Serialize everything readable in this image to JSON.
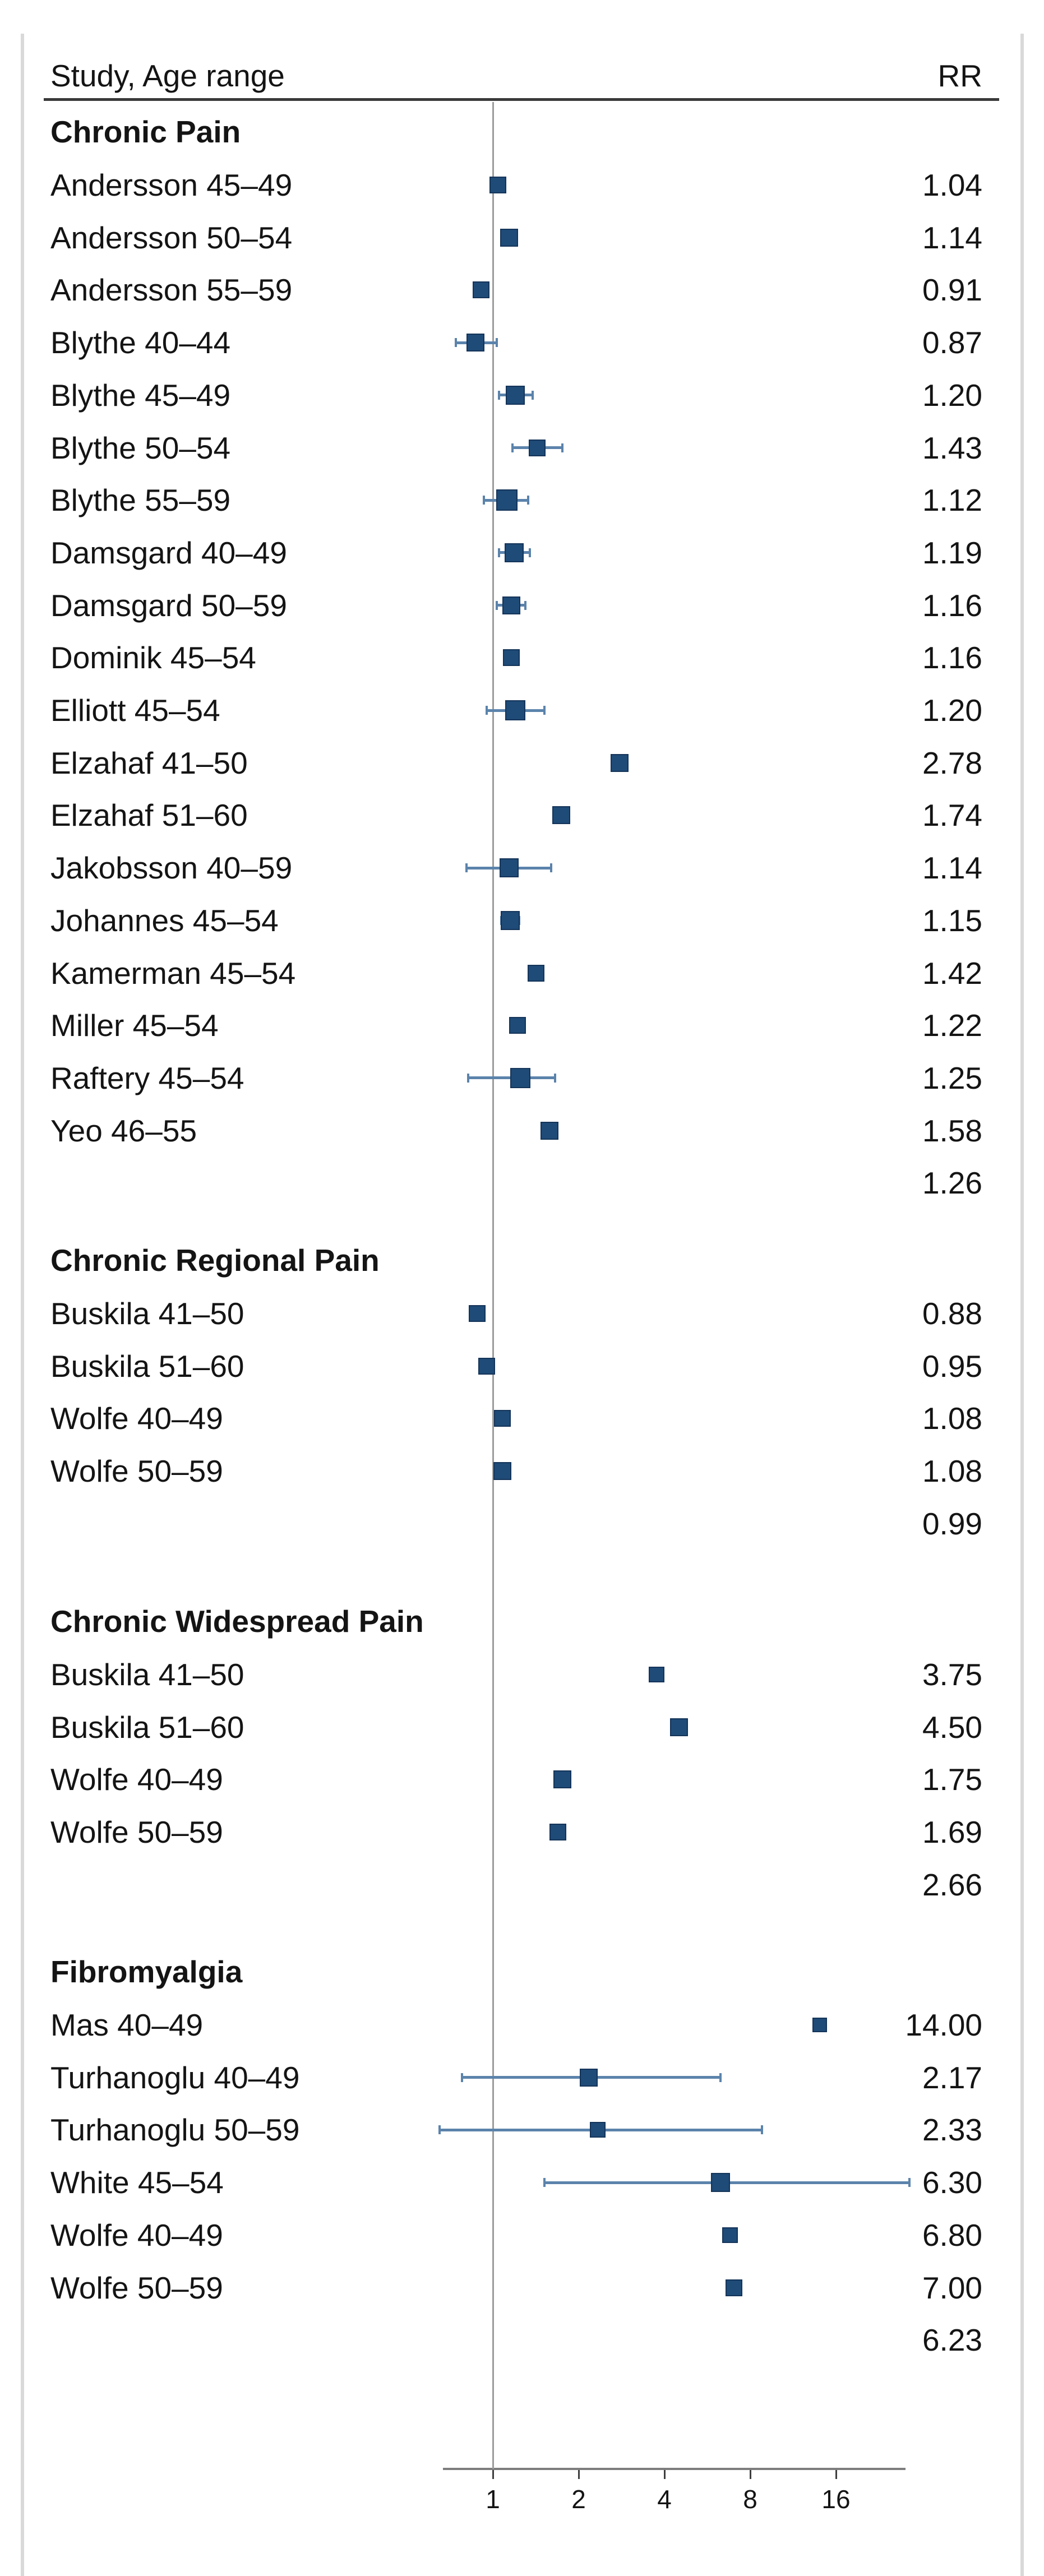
{
  "header": {
    "col_study": "Study, Age range",
    "col_rr": "RR"
  },
  "colors": {
    "marker": "#1f4b78",
    "marker_border": "#143459",
    "ci_line": "#5b83ab",
    "reference_line": "#9c9c9c",
    "axis_line": "#7d7d7d",
    "tick": "#3f3f3f",
    "header_rule": "#3a3a3a",
    "page_border": "#d9d9d9",
    "text": "#141414"
  },
  "chart_data": {
    "type": "scatter",
    "variant": "forest-plot",
    "title": "",
    "xlabel": "",
    "x_scale": "log2",
    "x_axis_extent_rr": [
      0.67,
      28
    ],
    "reference_line_x": 1,
    "x_ticks": [
      1,
      2,
      4,
      8,
      16
    ],
    "tick_labels": [
      "1",
      "2",
      "4",
      "8",
      "16"
    ],
    "sections": [
      {
        "title": "Chronic Pain",
        "pooled_rr": 1.26,
        "pooled_rr_text": "1.26",
        "rows": [
          {
            "label": "Andersson 45–49",
            "rr": 1.04,
            "rr_text": "1.04",
            "ci": null,
            "size": 30
          },
          {
            "label": "Andersson 50–54",
            "rr": 1.14,
            "rr_text": "1.14",
            "ci": null,
            "size": 32
          },
          {
            "label": "Andersson 55–59",
            "rr": 0.91,
            "rr_text": "0.91",
            "ci": null,
            "size": 30
          },
          {
            "label": "Blythe 40–44",
            "rr": 0.87,
            "rr_text": "0.87",
            "ci": [
              0.74,
              1.03
            ],
            "size": 32
          },
          {
            "label": "Blythe 45–49",
            "rr": 1.2,
            "rr_text": "1.20",
            "ci": [
              1.05,
              1.38
            ],
            "size": 34
          },
          {
            "label": "Blythe 50–54",
            "rr": 1.43,
            "rr_text": "1.43",
            "ci": [
              1.17,
              1.75
            ],
            "size": 30
          },
          {
            "label": "Blythe 55–59",
            "rr": 1.12,
            "rr_text": "1.12",
            "ci": [
              0.93,
              1.33
            ],
            "size": 38
          },
          {
            "label": "Damsgard 40–49",
            "rr": 1.19,
            "rr_text": "1.19",
            "ci": [
              1.05,
              1.35
            ],
            "size": 34
          },
          {
            "label": "Damsgard 50–59",
            "rr": 1.16,
            "rr_text": "1.16",
            "ci": [
              1.03,
              1.3
            ],
            "size": 32
          },
          {
            "label": "Dominik 45–54",
            "rr": 1.16,
            "rr_text": "1.16",
            "ci": null,
            "size": 30
          },
          {
            "label": "Elliott 45–54",
            "rr": 1.2,
            "rr_text": "1.20",
            "ci": [
              0.95,
              1.52
            ],
            "size": 36
          },
          {
            "label": "Elzahaf 41–50",
            "rr": 2.78,
            "rr_text": "2.78",
            "ci": null,
            "size": 32
          },
          {
            "label": "Elzahaf 51–60",
            "rr": 1.74,
            "rr_text": "1.74",
            "ci": null,
            "size": 32
          },
          {
            "label": "Jakobsson 40–59",
            "rr": 1.14,
            "rr_text": "1.14",
            "ci": [
              0.81,
              1.6
            ],
            "size": 34
          },
          {
            "label": "Johannes 45–54",
            "rr": 1.15,
            "rr_text": "1.15",
            "ci": [
              1.07,
              1.24
            ],
            "size": 34
          },
          {
            "label": "Kamerman 45–54",
            "rr": 1.42,
            "rr_text": "1.42",
            "ci": null,
            "size": 30
          },
          {
            "label": "Miller 45–54",
            "rr": 1.22,
            "rr_text": "1.22",
            "ci": null,
            "size": 30
          },
          {
            "label": "Raftery 45–54",
            "rr": 1.25,
            "rr_text": "1.25",
            "ci": [
              0.82,
              1.65
            ],
            "size": 36
          },
          {
            "label": "Yeo 46–55",
            "rr": 1.58,
            "rr_text": "1.58",
            "ci": null,
            "size": 32
          }
        ]
      },
      {
        "title": "Chronic Regional Pain",
        "pooled_rr": 0.99,
        "pooled_rr_text": "0.99",
        "rows": [
          {
            "label": "Buskila 41–50",
            "rr": 0.88,
            "rr_text": "0.88",
            "ci": null,
            "size": 30
          },
          {
            "label": "Buskila 51–60",
            "rr": 0.95,
            "rr_text": "0.95",
            "ci": null,
            "size": 30
          },
          {
            "label": "Wolfe 40–49",
            "rr": 1.08,
            "rr_text": "1.08",
            "ci": null,
            "size": 30
          },
          {
            "label": "Wolfe 50–59",
            "rr": 1.08,
            "rr_text": "1.08",
            "ci": null,
            "size": 32
          }
        ]
      },
      {
        "title": "Chronic Widespread Pain",
        "pooled_rr": 2.66,
        "pooled_rr_text": "2.66",
        "rows": [
          {
            "label": "Buskila 41–50",
            "rr": 3.75,
            "rr_text": "3.75",
            "ci": null,
            "size": 28
          },
          {
            "label": "Buskila 51–60",
            "rr": 4.5,
            "rr_text": "4.50",
            "ci": null,
            "size": 32
          },
          {
            "label": "Wolfe 40–49",
            "rr": 1.75,
            "rr_text": "1.75",
            "ci": null,
            "size": 32
          },
          {
            "label": "Wolfe 50–59",
            "rr": 1.69,
            "rr_text": "1.69",
            "ci": null,
            "size": 30
          }
        ]
      },
      {
        "title": "Fibromyalgia",
        "pooled_rr": 6.23,
        "pooled_rr_text": "6.23",
        "rows": [
          {
            "label": "Mas 40–49",
            "rr": 14.0,
            "rr_text": "14.00",
            "ci": null,
            "size": 26
          },
          {
            "label": "Turhanoglu 40–49",
            "rr": 2.17,
            "rr_text": "2.17",
            "ci": [
              0.78,
              6.3
            ],
            "size": 32
          },
          {
            "label": "Turhanoglu 50–59",
            "rr": 2.33,
            "rr_text": "2.33",
            "ci": [
              0.65,
              8.8
            ],
            "size": 28
          },
          {
            "label": "White 45–54",
            "rr": 6.3,
            "rr_text": "6.30",
            "ci": [
              1.52,
              29.0
            ],
            "size": 34
          },
          {
            "label": "Wolfe 40–49",
            "rr": 6.8,
            "rr_text": "6.80",
            "ci": null,
            "size": 28
          },
          {
            "label": "Wolfe 50–59",
            "rr": 7.0,
            "rr_text": "7.00",
            "ci": null,
            "size": 30
          }
        ]
      }
    ]
  }
}
